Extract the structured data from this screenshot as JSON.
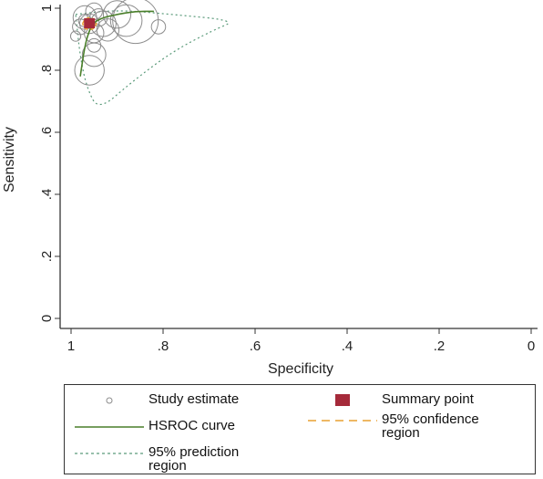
{
  "chart_data": {
    "type": "scatter",
    "xlabel": "Specificity",
    "ylabel": "Sensitivity",
    "x_reversed": true,
    "xlim": [
      1,
      0
    ],
    "ylim": [
      0,
      1
    ],
    "x_ticks": [
      1,
      0.8,
      0.6,
      0.4,
      0.2,
      0
    ],
    "x_tick_labels": [
      "1",
      ".8",
      ".6",
      ".4",
      ".2",
      "0"
    ],
    "y_ticks": [
      0,
      0.2,
      0.4,
      0.6,
      0.8,
      1
    ],
    "y_tick_labels": [
      "0",
      ".2",
      ".4",
      ".6",
      ".8",
      "1"
    ],
    "grid": false,
    "legend_position": "bottom",
    "colors": {
      "study": "#8c8c8c",
      "summary": "#a52a3a",
      "hsroc": "#4a7f2a",
      "confidence": "#e8a030",
      "prediction": "#5a9a7a"
    },
    "study_estimates": [
      {
        "spec": 0.95,
        "sens": 0.99,
        "weight": 0.28
      },
      {
        "spec": 0.9,
        "sens": 0.98,
        "weight": 0.55
      },
      {
        "spec": 0.88,
        "sens": 0.96,
        "weight": 0.65
      },
      {
        "spec": 0.86,
        "sens": 0.96,
        "weight": 1.0
      },
      {
        "spec": 0.81,
        "sens": 0.94,
        "weight": 0.22
      },
      {
        "spec": 0.97,
        "sens": 0.97,
        "weight": 0.45
      },
      {
        "spec": 0.96,
        "sens": 0.95,
        "weight": 0.35
      },
      {
        "spec": 0.93,
        "sens": 0.95,
        "weight": 0.5
      },
      {
        "spec": 0.92,
        "sens": 0.93,
        "weight": 0.42
      },
      {
        "spec": 0.98,
        "sens": 0.94,
        "weight": 0.25
      },
      {
        "spec": 0.95,
        "sens": 0.92,
        "weight": 0.35
      },
      {
        "spec": 0.99,
        "sens": 0.91,
        "weight": 0.12
      },
      {
        "spec": 0.95,
        "sens": 0.85,
        "weight": 0.45
      },
      {
        "spec": 0.96,
        "sens": 0.8,
        "weight": 0.6
      },
      {
        "spec": 0.95,
        "sens": 0.88,
        "weight": 0.2
      },
      {
        "spec": 0.97,
        "sens": 0.96,
        "weight": 0.18
      },
      {
        "spec": 0.94,
        "sens": 0.97,
        "weight": 0.3
      }
    ],
    "summary_point": {
      "spec": 0.96,
      "sens": 0.95
    },
    "hsroc_curve": [
      {
        "spec": 0.98,
        "sens": 0.78
      },
      {
        "spec": 0.97,
        "sens": 0.88
      },
      {
        "spec": 0.96,
        "sens": 0.93
      },
      {
        "spec": 0.95,
        "sens": 0.955
      },
      {
        "spec": 0.93,
        "sens": 0.97
      },
      {
        "spec": 0.9,
        "sens": 0.98
      },
      {
        "spec": 0.86,
        "sens": 0.99
      },
      {
        "spec": 0.82,
        "sens": 0.99
      }
    ],
    "confidence_region": [
      {
        "spec": 0.975,
        "sens": 0.95
      },
      {
        "spec": 0.97,
        "sens": 0.965
      },
      {
        "spec": 0.96,
        "sens": 0.97
      },
      {
        "spec": 0.95,
        "sens": 0.965
      },
      {
        "spec": 0.945,
        "sens": 0.95
      },
      {
        "spec": 0.95,
        "sens": 0.935
      },
      {
        "spec": 0.96,
        "sens": 0.93
      },
      {
        "spec": 0.97,
        "sens": 0.935
      },
      {
        "spec": 0.975,
        "sens": 0.95
      }
    ],
    "prediction_region": [
      {
        "spec": 0.99,
        "sens": 0.98
      },
      {
        "spec": 0.9,
        "sens": 0.995
      },
      {
        "spec": 0.78,
        "sens": 0.98
      },
      {
        "spec": 0.64,
        "sens": 0.96
      },
      {
        "spec": 0.69,
        "sens": 0.93
      },
      {
        "spec": 0.78,
        "sens": 0.86
      },
      {
        "spec": 0.87,
        "sens": 0.76
      },
      {
        "spec": 0.94,
        "sens": 0.67
      },
      {
        "spec": 0.965,
        "sens": 0.74
      },
      {
        "spec": 0.98,
        "sens": 0.84
      },
      {
        "spec": 0.99,
        "sens": 0.98
      }
    ],
    "legend": [
      {
        "label": "Study estimate",
        "type": "study"
      },
      {
        "label": "Summary point",
        "type": "summary"
      },
      {
        "label": "HSROC curve",
        "type": "hsroc"
      },
      {
        "label": "95% confidence region",
        "type": "confidence"
      },
      {
        "label": "95% prediction region",
        "type": "prediction"
      }
    ]
  }
}
